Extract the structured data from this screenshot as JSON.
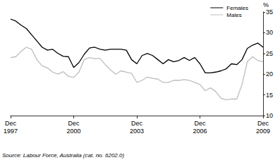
{
  "chart_data": {
    "type": "line",
    "y_label": "%",
    "annotations": [
      "Source: Labour Force, Australia (cat. no. 6202.0)"
    ],
    "categories": [
      "Dec\n1997",
      null,
      null,
      null,
      null,
      null,
      null,
      null,
      null,
      null,
      null,
      null,
      "Dec\n2000",
      null,
      null,
      null,
      null,
      null,
      null,
      null,
      null,
      null,
      null,
      null,
      "Dec\n2003",
      null,
      null,
      null,
      null,
      null,
      null,
      null,
      null,
      null,
      null,
      null,
      "Dec\n2006",
      null,
      null,
      null,
      null,
      null,
      null,
      null,
      null,
      null,
      null,
      null,
      "Dec\n2009"
    ],
    "series": [
      {
        "name": "Females",
        "color": "#000000",
        "values": [
          33.3,
          32.8,
          31.8,
          31,
          29.5,
          28,
          26.5,
          25.8,
          26,
          25,
          24.3,
          24.2,
          21.6,
          22.8,
          24.8,
          26.3,
          26.5,
          26,
          25.8,
          26,
          26,
          26,
          25.8,
          23.5,
          22.5,
          24.5,
          25,
          24.5,
          23.5,
          22.5,
          23.5,
          23,
          23.3,
          24,
          23.3,
          24,
          22.5,
          20.3,
          20.3,
          20.5,
          20.8,
          21.3,
          22.5,
          22.3,
          23.5,
          26.2,
          27,
          27.5,
          26.5
        ]
      },
      {
        "name": "Males",
        "color": "#bdbdbd",
        "values": [
          24,
          24.2,
          25.5,
          26.5,
          26,
          23.5,
          22,
          21.5,
          20.5,
          20,
          20.6,
          19.5,
          19.2,
          20.5,
          23.5,
          24,
          23.7,
          23.8,
          22.3,
          21,
          20,
          20.8,
          20.5,
          20.2,
          18,
          18.5,
          19.3,
          19,
          18.8,
          18,
          18,
          18.5,
          18.5,
          18.7,
          18.5,
          18,
          17.5,
          16,
          16.7,
          15.8,
          14.2,
          13.8,
          14,
          14,
          17.5,
          23,
          24.2,
          23.3,
          23
        ]
      }
    ],
    "ylim": [
      10,
      35
    ],
    "yticks": [
      10,
      15,
      20,
      25,
      30,
      35
    ],
    "grid": false,
    "legend": "top-right"
  }
}
